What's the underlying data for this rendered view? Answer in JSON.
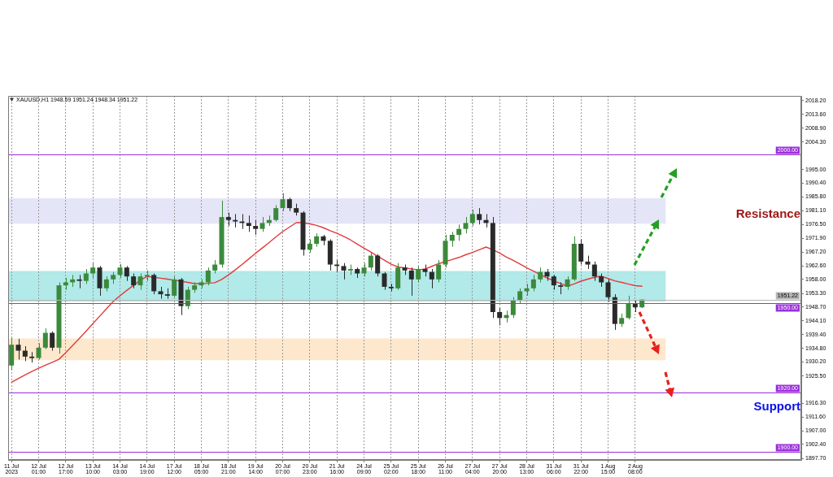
{
  "chart_data": {
    "type": "candlestick",
    "title": "XAUUSD,H1 1948.59 1951.24 1948.34 1951.22",
    "categories": [
      "11 Jul 2023",
      null,
      null,
      null,
      "12 Jul 01:00",
      null,
      null,
      null,
      "12 Jul 17:00",
      null,
      null,
      null,
      "13 Jul 10:00",
      null,
      null,
      null,
      "14 Jul 03:00",
      null,
      null,
      null,
      "14 Jul 19:00",
      null,
      null,
      null,
      "17 Jul 12:00",
      null,
      null,
      null,
      "18 Jul 05:00",
      null,
      null,
      null,
      "18 Jul 21:00",
      null,
      null,
      null,
      "19 Jul 14:00",
      null,
      null,
      null,
      "20 Jul 07:00",
      null,
      null,
      null,
      "20 Jul 23:00",
      null,
      null,
      null,
      "21 Jul 16:00",
      null,
      null,
      null,
      "24 Jul 09:00",
      null,
      null,
      null,
      "25 Jul 02:00",
      null,
      null,
      null,
      "25 Jul 18:00",
      null,
      null,
      null,
      "26 Jul 11:00",
      null,
      null,
      null,
      "27 Jul 04:00",
      null,
      null,
      null,
      "27 Jul 20:00",
      null,
      null,
      null,
      "28 Jul 13:00",
      null,
      null,
      null,
      "31 Jul 06:00",
      null,
      null,
      null,
      "31 Jul 22:00",
      null,
      null,
      null,
      "1 Aug 15:00",
      null,
      null,
      null,
      "2 Aug 08:00",
      null,
      null,
      null,
      null,
      null,
      null,
      null,
      null,
      null,
      null,
      null,
      null,
      null,
      null,
      null,
      null,
      null,
      null,
      null,
      null,
      null,
      null,
      null,
      null
    ],
    "ohlc": [
      [
        1929,
        1938.3,
        1927.5,
        1936
      ],
      [
        1936,
        1938,
        1931,
        1934
      ],
      [
        1934,
        1935.5,
        1930.5,
        1932
      ],
      [
        1932,
        1933.5,
        1930,
        1931.5
      ],
      [
        1931.5,
        1936.5,
        1931,
        1935
      ],
      [
        1935,
        1941.5,
        1934.5,
        1940
      ],
      [
        1940,
        1940.5,
        1934,
        1935
      ],
      [
        1935,
        1957,
        1933,
        1956
      ],
      [
        1956,
        1958.5,
        1954.5,
        1957
      ],
      [
        1957,
        1959.5,
        1955.5,
        1958
      ],
      [
        1958,
        1959.5,
        1955,
        1957.5
      ],
      [
        1957.5,
        1961.5,
        1956.5,
        1960
      ],
      [
        1960,
        1963.5,
        1958.5,
        1962
      ],
      [
        1962,
        1962.5,
        1952.5,
        1955
      ],
      [
        1955,
        1959,
        1954,
        1958
      ],
      [
        1958,
        1960.5,
        1956.5,
        1959.5
      ],
      [
        1959.5,
        1963.2,
        1958.5,
        1962
      ],
      [
        1962,
        1962.5,
        1957.5,
        1959
      ],
      [
        1959,
        1960,
        1955,
        1956
      ],
      [
        1956,
        1960,
        1954.5,
        1959
      ],
      [
        1959,
        1961,
        1957.5,
        1959.5
      ],
      [
        1959.5,
        1960,
        1953,
        1954
      ],
      [
        1954,
        1955.5,
        1951.5,
        1953
      ],
      [
        1953,
        1955,
        1951.5,
        1952.5
      ],
      [
        1952.5,
        1959,
        1952,
        1958
      ],
      [
        1958,
        1958.5,
        1946,
        1949
      ],
      [
        1949,
        1955.5,
        1948,
        1954.5
      ],
      [
        1954.5,
        1957,
        1953.5,
        1956
      ],
      [
        1956,
        1958,
        1955,
        1957
      ],
      [
        1957,
        1962,
        1956,
        1961
      ],
      [
        1961,
        1964.5,
        1960,
        1963
      ],
      [
        1963,
        1984.5,
        1962,
        1979
      ],
      [
        1979,
        1980.5,
        1976,
        1978
      ],
      [
        1978,
        1980,
        1975.5,
        1977.5
      ],
      [
        1977.5,
        1980,
        1975,
        1977
      ],
      [
        1977,
        1979.5,
        1974,
        1976
      ],
      [
        1976,
        1978,
        1973,
        1975
      ],
      [
        1975,
        1979,
        1974,
        1977
      ],
      [
        1977,
        1979.5,
        1976,
        1978
      ],
      [
        1978,
        1983,
        1977.5,
        1982
      ],
      [
        1982,
        1987,
        1981,
        1985
      ],
      [
        1985,
        1985.5,
        1981,
        1982
      ],
      [
        1982,
        1983.5,
        1979.5,
        1980.5
      ],
      [
        1980.5,
        1981,
        1966,
        1968
      ],
      [
        1968,
        1971.5,
        1967,
        1970
      ],
      [
        1970,
        1973.5,
        1969,
        1972.5
      ],
      [
        1972.5,
        1973,
        1969.5,
        1971
      ],
      [
        1971,
        1971.5,
        1961,
        1963
      ],
      [
        1963,
        1964.5,
        1960.5,
        1962.5
      ],
      [
        1962.5,
        1963.5,
        1958,
        1961
      ],
      [
        1961,
        1963,
        1959.5,
        1961.5
      ],
      [
        1961.5,
        1962,
        1958.5,
        1960
      ],
      [
        1960,
        1963.5,
        1959,
        1962
      ],
      [
        1962,
        1967.2,
        1961,
        1966
      ],
      [
        1966,
        1966.5,
        1959,
        1960
      ],
      [
        1960,
        1960.5,
        1954.5,
        1955.5
      ],
      [
        1955.5,
        1956.5,
        1954,
        1955
      ],
      [
        1955,
        1963.5,
        1954.5,
        1962
      ],
      [
        1962,
        1963,
        1959.5,
        1961
      ],
      [
        1961,
        1962,
        1952.5,
        1958
      ],
      [
        1958,
        1962.5,
        1957,
        1961.5
      ],
      [
        1961.5,
        1963,
        1959,
        1960.5
      ],
      [
        1960.5,
        1961.5,
        1955,
        1958
      ],
      [
        1958,
        1964.5,
        1957,
        1963
      ],
      [
        1963,
        1973,
        1962,
        1971
      ],
      [
        1971,
        1974,
        1969,
        1973
      ],
      [
        1973,
        1976.5,
        1971,
        1975
      ],
      [
        1975,
        1979,
        1973.5,
        1977
      ],
      [
        1977,
        1981.5,
        1976,
        1980
      ],
      [
        1980,
        1982,
        1976.5,
        1978
      ],
      [
        1978,
        1980,
        1975.5,
        1977
      ],
      [
        1977,
        1979,
        1945,
        1947
      ],
      [
        1947,
        1948.5,
        1942.5,
        1945
      ],
      [
        1945,
        1947.5,
        1943.5,
        1946
      ],
      [
        1946,
        1952,
        1945,
        1951
      ],
      [
        1951,
        1955,
        1950,
        1954
      ],
      [
        1954,
        1956.5,
        1952.5,
        1955
      ],
      [
        1955,
        1959.5,
        1954,
        1958
      ],
      [
        1958,
        1962,
        1957,
        1960.5
      ],
      [
        1960.5,
        1961.5,
        1957.5,
        1959
      ],
      [
        1959,
        1959.5,
        1954.5,
        1956
      ],
      [
        1956,
        1957,
        1953,
        1955.5
      ],
      [
        1955.5,
        1959,
        1954.5,
        1958
      ],
      [
        1958,
        1972.5,
        1957.5,
        1970
      ],
      [
        1970,
        1971.5,
        1963,
        1964
      ],
      [
        1964,
        1966,
        1961.5,
        1963
      ],
      [
        1963,
        1964,
        1957.5,
        1959
      ],
      [
        1959,
        1960,
        1955.5,
        1957
      ],
      [
        1957,
        1958,
        1950.5,
        1952
      ],
      [
        1952,
        1953,
        1941,
        1943
      ],
      [
        1943,
        1946.5,
        1942,
        1945
      ],
      [
        1945,
        1952.5,
        1944.5,
        1950
      ],
      [
        1950,
        1951,
        1947,
        1948.59
      ],
      [
        1948.59,
        1951.24,
        1948.34,
        1951.22
      ],
      null,
      null,
      null,
      null,
      null,
      null,
      null,
      null,
      null,
      null,
      null,
      null,
      null,
      null,
      null,
      null,
      null,
      null,
      null,
      null,
      null,
      null,
      null
    ],
    "colors": [
      "#3b8a3b",
      "#2a2a2a",
      "#2a2a2a",
      "#2a2a2a",
      "#3b8a3b",
      "#3b8a3b",
      "#2a2a2a",
      "#3b8a3b",
      "#3b8a3b",
      "#3b8a3b",
      "#2a2a2a",
      "#3b8a3b",
      "#3b8a3b",
      "#2a2a2a",
      "#3b8a3b",
      "#3b8a3b",
      "#3b8a3b",
      "#2a2a2a",
      "#2a2a2a",
      "#3b8a3b",
      "#3b8a3b",
      "#2a2a2a",
      "#2a2a2a",
      "#2a2a2a",
      "#3b8a3b",
      "#2a2a2a",
      "#3b8a3b",
      "#3b8a3b",
      "#3b8a3b",
      "#3b8a3b",
      "#3b8a3b",
      "#3b8a3b",
      "#2a2a2a",
      "#2a2a2a",
      "#2a2a2a",
      "#2a2a2a",
      "#2a2a2a",
      "#3b8a3b",
      "#3b8a3b",
      "#3b8a3b",
      "#3b8a3b",
      "#2a2a2a",
      "#2a2a2a",
      "#2a2a2a",
      "#3b8a3b",
      "#3b8a3b",
      "#2a2a2a",
      "#2a2a2a",
      "#2a2a2a",
      "#2a2a2a",
      "#3b8a3b",
      "#2a2a2a",
      "#3b8a3b",
      "#3b8a3b",
      "#2a2a2a",
      "#2a2a2a",
      "#2a2a2a",
      "#3b8a3b",
      "#2a2a2a",
      "#2a2a2a",
      "#3b8a3b",
      "#2a2a2a",
      "#2a2a2a",
      "#3b8a3b",
      "#3b8a3b",
      "#3b8a3b",
      "#3b8a3b",
      "#3b8a3b",
      "#3b8a3b",
      "#2a2a2a",
      "#2a2a2a",
      "#2a2a2a",
      "#2a2a2a",
      "#3b8a3b",
      "#3b8a3b",
      "#3b8a3b",
      "#3b8a3b",
      "#3b8a3b",
      "#3b8a3b",
      "#2a2a2a",
      "#2a2a2a",
      "#2a2a2a",
      "#3b8a3b",
      "#3b8a3b",
      "#2a2a2a",
      "#2a2a2a",
      "#2a2a2a",
      "#2a2a2a",
      "#2a2a2a",
      "#2a2a2a",
      "#3b8a3b",
      "#3b8a3b",
      "#2a2a2a",
      "#3b8a3b",
      null,
      null,
      null,
      null,
      null,
      null,
      null,
      null,
      null,
      null,
      null,
      null,
      null,
      null,
      null,
      null,
      null,
      null,
      null,
      null,
      null,
      null,
      null
    ],
    "series": [
      {
        "type": "line",
        "color": "#e23b3b",
        "values": [
          1923.4,
          1924.6,
          1925.8,
          1927.0,
          1928.1,
          1929.1,
          1930.1,
          1931.1,
          1933.3,
          1935.7,
          1938.1,
          1940.6,
          1943.1,
          1945.6,
          1948.1,
          1950.6,
          1952.5,
          1954.3,
          1956.0,
          1957.7,
          1959.0,
          1958.7,
          1958.4,
          1958.1,
          1957.7,
          1957.4,
          1957.0,
          1956.6,
          1956.6,
          1956.7,
          1956.9,
          1958.0,
          1959.5,
          1961.2,
          1963.0,
          1964.9,
          1966.8,
          1968.6,
          1970.4,
          1972.3,
          1974.1,
          1975.6,
          1977.1,
          1977.1,
          1976.7,
          1976.2,
          1975.4,
          1974.4,
          1973.5,
          1972.5,
          1971.3,
          1969.9,
          1968.5,
          1967.2,
          1965.8,
          1964.5,
          1963.1,
          1962.2,
          1961.9,
          1961.5,
          1961.2,
          1961.5,
          1962.4,
          1963.3,
          1964.0,
          1964.7,
          1965.4,
          1966.3,
          1967.1,
          1968.0,
          1968.9,
          1968.0,
          1966.9,
          1965.5,
          1964.4,
          1963.2,
          1961.9,
          1960.8,
          1959.6,
          1958.5,
          1957.5,
          1956.6,
          1955.7,
          1956.5,
          1957.4,
          1958.1,
          1958.7,
          1959.1,
          1958.3,
          1957.5,
          1957.0,
          1956.4,
          1955.9,
          1955.7,
          null,
          null,
          null,
          null,
          null,
          null,
          null,
          null,
          null,
          null,
          null,
          null,
          null,
          null,
          null,
          null,
          null,
          null,
          null,
          null,
          null,
          null,
          null
        ]
      }
    ],
    "ylim": [
      1897.2,
      2019.8
    ],
    "yticks": [
      {
        "value": 2018.2,
        "label": "2018.20"
      },
      {
        "value": 2013.6,
        "label": "2013.60"
      },
      {
        "value": 2008.9,
        "label": "2008.90"
      },
      {
        "value": 2004.3,
        "label": "2004.30"
      },
      {
        "value": 1995,
        "label": "1995.00"
      },
      {
        "value": 1990.4,
        "label": "1990.40"
      },
      {
        "value": 1985.8,
        "label": "1985.80"
      },
      {
        "value": 1981.1,
        "label": "1981.10"
      },
      {
        "value": 1976.5,
        "label": "1976.50"
      },
      {
        "value": 1971.9,
        "label": "1971.90"
      },
      {
        "value": 1967.2,
        "label": "1967.20"
      },
      {
        "value": 1962.6,
        "label": "1962.60"
      },
      {
        "value": 1958,
        "label": "1958.00"
      },
      {
        "value": 1953.3,
        "label": "1953.30"
      },
      {
        "value": 1948.7,
        "label": "1948.70"
      },
      {
        "value": 1944.1,
        "label": "1944.10"
      },
      {
        "value": 1939.4,
        "label": "1939.40"
      },
      {
        "value": 1934.8,
        "label": "1934.80"
      },
      {
        "value": 1930.2,
        "label": "1930.20"
      },
      {
        "value": 1925.5,
        "label": "1925.50"
      },
      {
        "value": 1916.3,
        "label": "1916.30"
      },
      {
        "value": 1911.6,
        "label": "1911.60"
      },
      {
        "value": 1907,
        "label": "1907.00"
      },
      {
        "value": 1902.4,
        "label": "1902.40"
      },
      {
        "value": 1897.7,
        "label": "1897.70"
      }
    ],
    "ref_lines": [
      {
        "axis": "y",
        "value": 2000,
        "label": "2000.00",
        "color": "#9b30d9"
      },
      {
        "axis": "y",
        "value": 1951.22,
        "label": "1951.22",
        "color": "#b5b5b5"
      },
      {
        "axis": "y",
        "value": 1950,
        "label": "1950.00",
        "color": "#9b30d9"
      },
      {
        "axis": "y",
        "value": 1920,
        "label": "1920.00",
        "color": "#9b30d9"
      },
      {
        "axis": "y",
        "value": 1900,
        "label": "1900.00",
        "color": "#9b30d9"
      }
    ],
    "bands": [
      {
        "axis": "y",
        "from": 1976.8,
        "to": 1985.3,
        "color": "#e5e5f8"
      },
      {
        "axis": "y",
        "from": 1950.5,
        "to": 1960.8,
        "color": "#b2e9e9"
      },
      {
        "axis": "y",
        "from": 1930.8,
        "to": 1938.1,
        "color": "#fde8cd"
      }
    ],
    "annotations": [
      "Resistance",
      "Support"
    ],
    "grid": "x"
  }
}
